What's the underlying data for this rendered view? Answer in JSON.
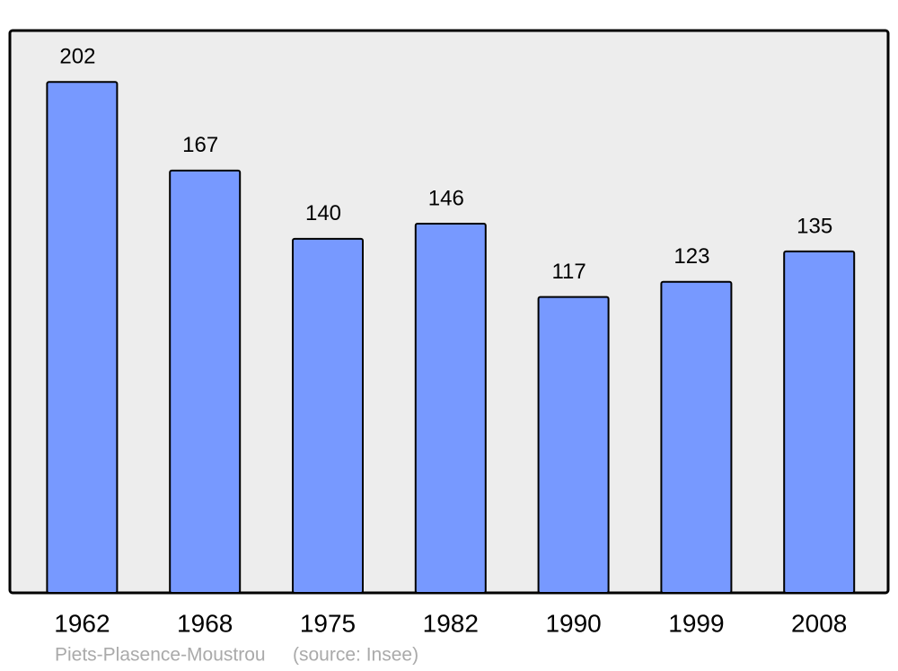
{
  "chart_data": {
    "type": "bar",
    "categories": [
      "1962",
      "1968",
      "1975",
      "1982",
      "1990",
      "1999",
      "2008"
    ],
    "values": [
      202,
      167,
      140,
      146,
      117,
      123,
      135
    ],
    "color": "#7799ff",
    "ylim": [
      0,
      222
    ],
    "subtitle": "Piets-Plasence-Moustrou",
    "source": "(source: Insee)"
  }
}
